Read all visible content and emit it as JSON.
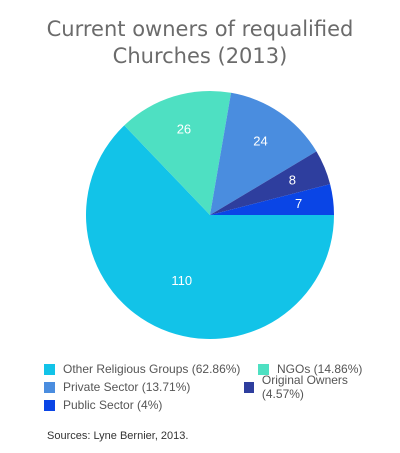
{
  "title_line1": "Current owners of requalified",
  "title_line2": "Churches (2013)",
  "source": "Sources: Lyne Bernier, 2013.",
  "chart_data": {
    "type": "pie",
    "title": "Current owners of requalified Churches (2013)",
    "slices": [
      {
        "label": "Other Religious Groups (62.86%)",
        "value": 110,
        "display": "110",
        "color": "#12c3e8"
      },
      {
        "label": "NGOs (14.86%)",
        "value": 26,
        "display": "26",
        "color": "#4ee0c2"
      },
      {
        "label": "Private Sector (13.71%)",
        "value": 24,
        "display": "24",
        "color": "#4a8ddf"
      },
      {
        "label": "Original Owners (4.57%)",
        "value": 8,
        "display": "8",
        "color": "#2e3e9e"
      },
      {
        "label": "Public Sector (4%)",
        "value": 7,
        "display": "7",
        "color": "#0a45e6"
      }
    ],
    "start_angle_deg": 0,
    "direction": "clockwise",
    "legend_position": "bottom"
  }
}
